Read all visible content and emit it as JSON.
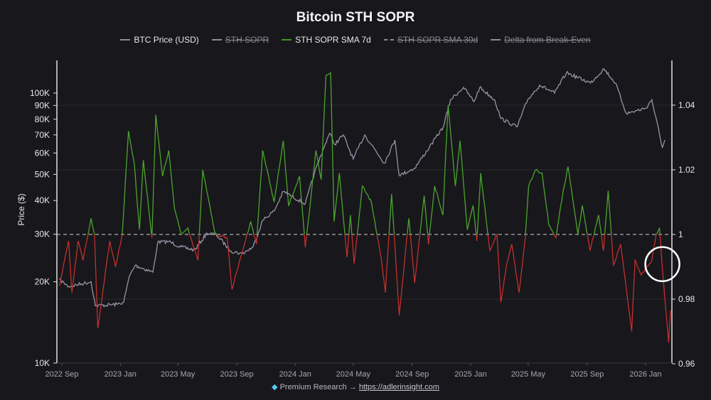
{
  "colors": {
    "background": "#18171c",
    "price": "#9793a6",
    "sma7_above": "#4aa52c",
    "sma7_below": "#c2302c",
    "grid": "#2a2930",
    "axis": "#e0e0e0",
    "break_even": "#cfcfd4",
    "highlight_circle": "#ffffff"
  },
  "footer": {
    "icon": "gem-icon",
    "text": "Premium Research →",
    "link": "https://adlerinsight.com"
  },
  "chart_data": {
    "type": "line",
    "title": "Bitcoin STH SOPR",
    "ylabel": "Price ($)",
    "y_scale": "log",
    "ylim": [
      10000,
      150000
    ],
    "y2lim": [
      0.96,
      1.055
    ],
    "grid": true,
    "legend_position": "top",
    "legend": [
      {
        "name": "BTC Price (USD)",
        "enabled": true,
        "style": "solid"
      },
      {
        "name": "STH SOPR",
        "enabled": false,
        "style": "solid"
      },
      {
        "name": "STH SOPR SMA 7d",
        "enabled": true,
        "style": "solid"
      },
      {
        "name": "STH SOPR SMA 30d",
        "enabled": false,
        "style": "dashed"
      },
      {
        "name": "Delta from Break-Even",
        "enabled": false,
        "style": "solid"
      }
    ],
    "y_ticks": [
      "10K",
      "20K",
      "30K",
      "40K",
      "50K",
      "60K",
      "70K",
      "80K",
      "90K",
      "100K"
    ],
    "y_tick_values": [
      10000,
      20000,
      30000,
      40000,
      50000,
      60000,
      70000,
      80000,
      90000,
      100000
    ],
    "y2_ticks": [
      "0.96",
      "0.98",
      "1",
      "1.02",
      "1.04"
    ],
    "y2_tick_values": [
      0.96,
      0.98,
      1,
      1.02,
      1.04
    ],
    "x_ticks": [
      {
        "label": "2022 Sep",
        "date": "2022-09-01"
      },
      {
        "label": "2023 Jan",
        "date": "2023-01-01"
      },
      {
        "label": "2023 May",
        "date": "2023-05-01"
      },
      {
        "label": "2023 Sep",
        "date": "2023-09-01"
      },
      {
        "label": "2024 Jan",
        "date": "2024-01-01"
      },
      {
        "label": "2024 May",
        "date": "2024-05-01"
      },
      {
        "label": "2024 Sep",
        "date": "2024-09-01"
      },
      {
        "label": "2025 Jan",
        "date": "2025-01-01"
      },
      {
        "label": "2025 May",
        "date": "2025-05-01"
      },
      {
        "label": "2025 Sep",
        "date": "2025-09-01"
      },
      {
        "label": "2026 Jan",
        "date": "2026-01-01"
      }
    ],
    "break_even": 1,
    "series": [
      {
        "name": "BTC Price (USD)",
        "axis": "left",
        "points": [
          [
            "2022-08-27",
            20400
          ],
          [
            "2022-09-15",
            19200
          ],
          [
            "2022-11-01",
            20000
          ],
          [
            "2022-11-10",
            16300
          ],
          [
            "2022-12-25",
            16500
          ],
          [
            "2023-01-08",
            16800
          ],
          [
            "2023-01-20",
            21000
          ],
          [
            "2023-02-01",
            23000
          ],
          [
            "2023-03-10",
            21700
          ],
          [
            "2023-03-20",
            28000
          ],
          [
            "2023-04-12",
            28200
          ],
          [
            "2023-05-08",
            26900
          ],
          [
            "2023-06-05",
            26200
          ],
          [
            "2023-07-01",
            30300
          ],
          [
            "2023-07-20",
            29900
          ],
          [
            "2023-08-20",
            26000
          ],
          [
            "2023-09-12",
            25400
          ],
          [
            "2023-10-05",
            26900
          ],
          [
            "2023-10-25",
            33800
          ],
          [
            "2023-11-18",
            36600
          ],
          [
            "2023-12-07",
            43200
          ],
          [
            "2024-01-22",
            38900
          ],
          [
            "2024-02-10",
            50600
          ],
          [
            "2024-03-03",
            64500
          ],
          [
            "2024-03-13",
            71000
          ],
          [
            "2024-03-23",
            64500
          ],
          [
            "2024-04-10",
            70000
          ],
          [
            "2024-05-01",
            57000
          ],
          [
            "2024-05-25",
            70000
          ],
          [
            "2024-07-05",
            55000
          ],
          [
            "2024-07-27",
            67000
          ],
          [
            "2024-08-05",
            49500
          ],
          [
            "2024-09-06",
            52700
          ],
          [
            "2024-10-07",
            63000
          ],
          [
            "2024-11-05",
            75000
          ],
          [
            "2024-11-20",
            94500
          ],
          [
            "2024-12-17",
            105000
          ],
          [
            "2025-01-08",
            93000
          ],
          [
            "2025-01-20",
            105000
          ],
          [
            "2025-02-20",
            94500
          ],
          [
            "2025-03-05",
            80500
          ],
          [
            "2025-04-08",
            75000
          ],
          [
            "2025-04-30",
            94500
          ],
          [
            "2025-05-25",
            107000
          ],
          [
            "2025-06-25",
            100000
          ],
          [
            "2025-07-20",
            119000
          ],
          [
            "2025-09-08",
            109000
          ],
          [
            "2025-10-06",
            123000
          ],
          [
            "2025-10-30",
            109000
          ],
          [
            "2025-11-22",
            84000
          ],
          [
            "2026-01-02",
            88000
          ],
          [
            "2026-01-14",
            94500
          ],
          [
            "2026-02-05",
            63000
          ],
          [
            "2026-02-10",
            67000
          ]
        ]
      },
      {
        "name": "STH SOPR SMA 7d",
        "axis": "right",
        "points": [
          [
            "2022-08-27",
            0.984
          ],
          [
            "2022-09-15",
            0.998
          ],
          [
            "2022-09-22",
            0.982
          ],
          [
            "2022-10-05",
            0.998
          ],
          [
            "2022-10-15",
            0.992
          ],
          [
            "2022-11-01",
            1.005
          ],
          [
            "2022-11-08",
            1.0
          ],
          [
            "2022-11-15",
            0.971
          ],
          [
            "2022-12-10",
            0.998
          ],
          [
            "2022-12-22",
            0.99
          ],
          [
            "2023-01-05",
            1.0
          ],
          [
            "2023-01-18",
            1.032
          ],
          [
            "2023-01-30",
            1.022
          ],
          [
            "2023-02-10",
            1.0015
          ],
          [
            "2023-02-18",
            1.023
          ],
          [
            "2023-03-08",
            0.999
          ],
          [
            "2023-03-16",
            1.037
          ],
          [
            "2023-03-30",
            1.018
          ],
          [
            "2023-04-12",
            1.026
          ],
          [
            "2023-04-24",
            1.008
          ],
          [
            "2023-05-08",
            1.0
          ],
          [
            "2023-05-22",
            1.002
          ],
          [
            "2023-06-12",
            0.992
          ],
          [
            "2023-06-22",
            1.02
          ],
          [
            "2023-07-18",
            1.0
          ],
          [
            "2023-08-12",
            0.999
          ],
          [
            "2023-08-22",
            0.983
          ],
          [
            "2023-09-15",
            0.996
          ],
          [
            "2023-09-30",
            1.004
          ],
          [
            "2023-10-12",
            0.997
          ],
          [
            "2023-10-25",
            1.026
          ],
          [
            "2023-11-18",
            1.01
          ],
          [
            "2023-12-07",
            1.029
          ],
          [
            "2023-12-18",
            1.009
          ],
          [
            "2024-01-10",
            1.018
          ],
          [
            "2024-01-22",
            0.996
          ],
          [
            "2024-02-01",
            1.009
          ],
          [
            "2024-02-13",
            1.026
          ],
          [
            "2024-02-24",
            1.017
          ],
          [
            "2024-03-05",
            1.049
          ],
          [
            "2024-03-15",
            1.05
          ],
          [
            "2024-03-22",
            1.004
          ],
          [
            "2024-04-02",
            1.019
          ],
          [
            "2024-04-18",
            0.993
          ],
          [
            "2024-04-25",
            1.006
          ],
          [
            "2024-05-03",
            0.991
          ],
          [
            "2024-05-20",
            1.015
          ],
          [
            "2024-06-08",
            1.01
          ],
          [
            "2024-06-28",
            0.993
          ],
          [
            "2024-07-07",
            0.982
          ],
          [
            "2024-07-20",
            1.0125
          ],
          [
            "2024-08-05",
            0.975
          ],
          [
            "2024-08-17",
            0.993
          ],
          [
            "2024-08-25",
            1.005
          ],
          [
            "2024-09-06",
            0.985
          ],
          [
            "2024-09-26",
            1.012
          ],
          [
            "2024-10-05",
            0.997
          ],
          [
            "2024-10-18",
            1.015
          ],
          [
            "2024-11-04",
            1.006
          ],
          [
            "2024-11-15",
            1.04
          ],
          [
            "2024-11-30",
            1.015
          ],
          [
            "2024-12-10",
            1.029
          ],
          [
            "2024-12-25",
            1.0015
          ],
          [
            "2025-01-06",
            1.009
          ],
          [
            "2025-01-14",
            0.998
          ],
          [
            "2025-01-22",
            1.019
          ],
          [
            "2025-02-10",
            0.995
          ],
          [
            "2025-02-25",
            1.0
          ],
          [
            "2025-03-05",
            0.979
          ],
          [
            "2025-03-17",
            0.9905
          ],
          [
            "2025-03-28",
            0.997
          ],
          [
            "2025-04-12",
            0.982
          ],
          [
            "2025-04-25",
            0.999
          ],
          [
            "2025-05-02",
            1.015
          ],
          [
            "2025-05-17",
            1.02
          ],
          [
            "2025-05-30",
            1.019
          ],
          [
            "2025-06-13",
            1.003
          ],
          [
            "2025-06-28",
            0.999
          ],
          [
            "2025-07-08",
            1.009
          ],
          [
            "2025-07-23",
            1.021
          ],
          [
            "2025-08-13",
            1.0
          ],
          [
            "2025-08-22",
            1.009
          ],
          [
            "2025-09-07",
            0.995
          ],
          [
            "2025-09-25",
            1.006
          ],
          [
            "2025-10-05",
            0.995
          ],
          [
            "2025-10-15",
            1.0135
          ],
          [
            "2025-10-26",
            0.9905
          ],
          [
            "2025-11-10",
            0.997
          ],
          [
            "2025-12-03",
            0.97
          ],
          [
            "2025-12-10",
            0.992
          ],
          [
            "2025-12-23",
            0.9875
          ],
          [
            "2026-01-14",
            0.992
          ],
          [
            "2026-01-23",
            1.0
          ],
          [
            "2026-01-30",
            1.002
          ],
          [
            "2026-02-05",
            0.9895
          ],
          [
            "2026-02-18",
            0.9665
          ],
          [
            "2026-02-22",
            0.9765
          ]
        ]
      }
    ]
  }
}
